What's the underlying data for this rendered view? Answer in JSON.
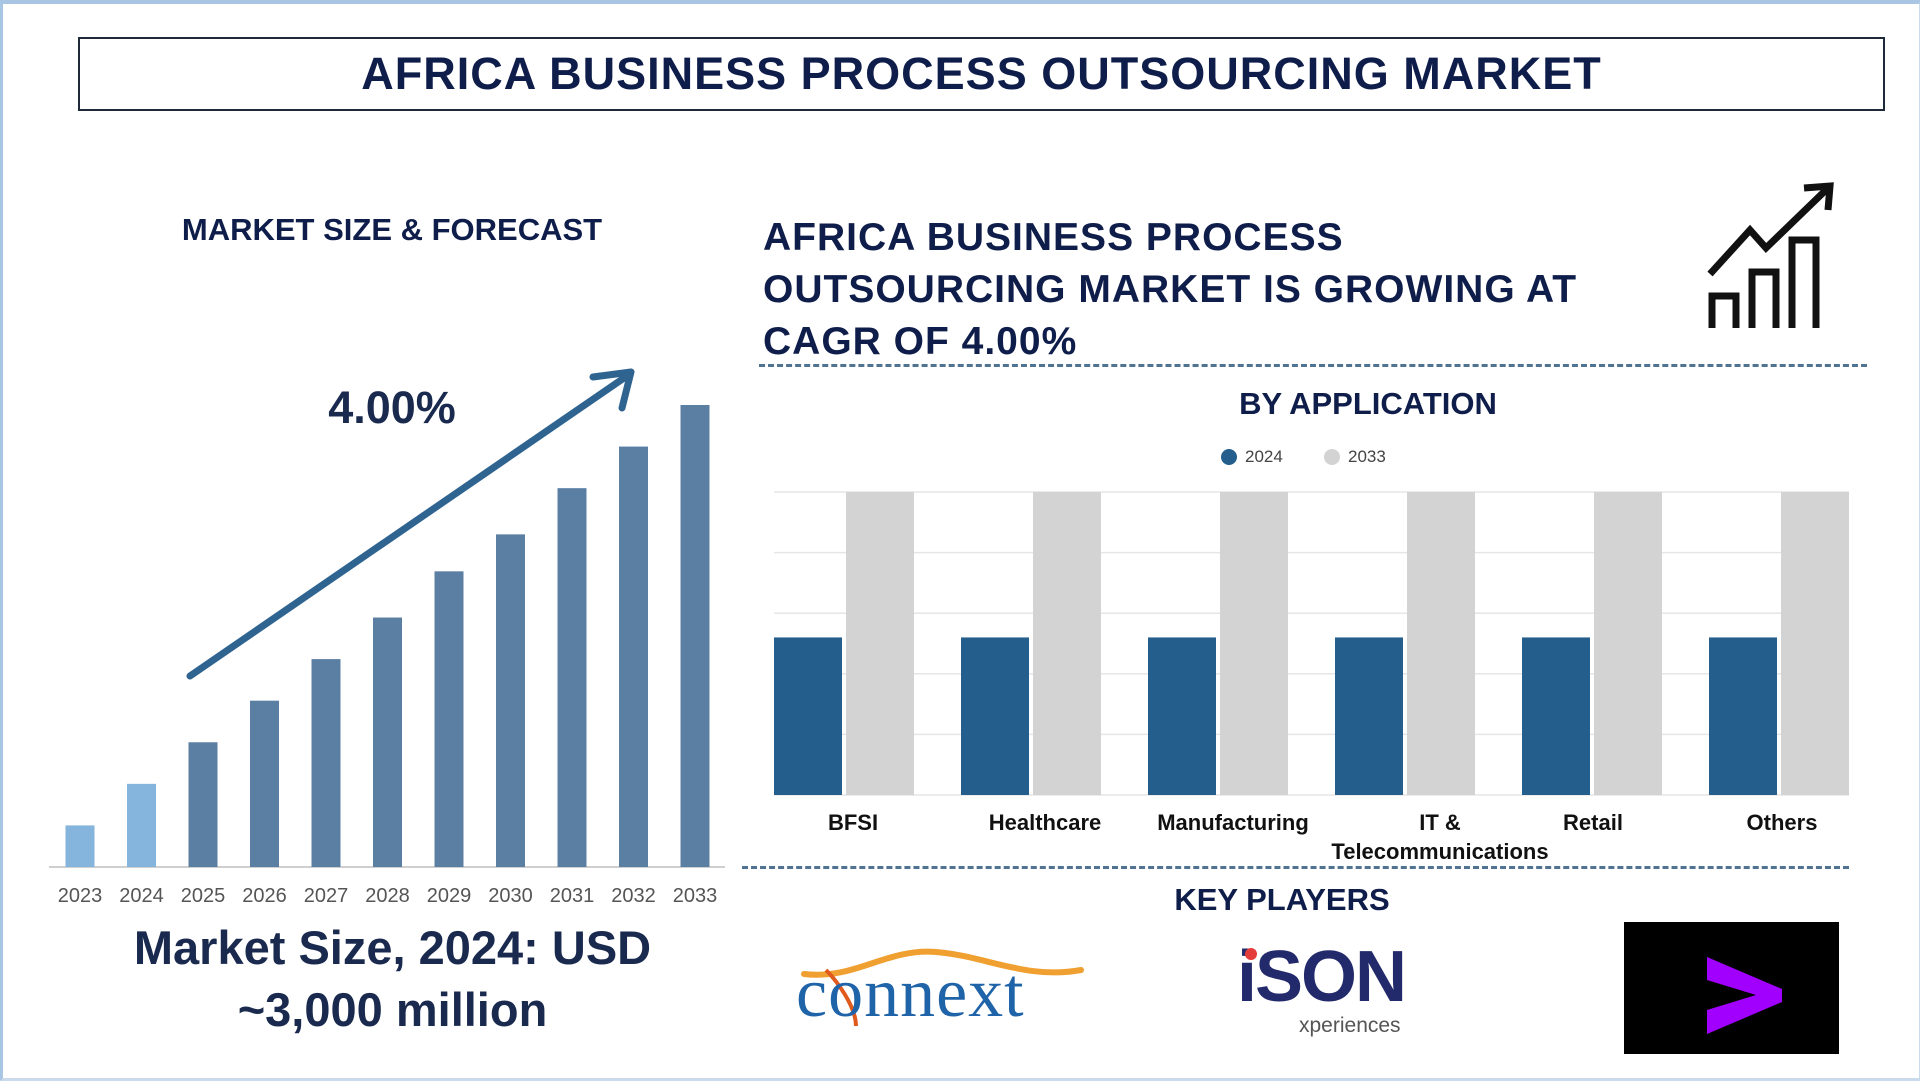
{
  "header": {
    "title": "AFRICA BUSINESS PROCESS OUTSOURCING MARKET"
  },
  "left_panel": {
    "section_title": "MARKET SIZE & FORECAST",
    "cagr_label": "4.00%",
    "market_size_line1": "Market Size, 2024: USD",
    "market_size_line2": "~3,000 million"
  },
  "right_panel": {
    "headline_lines": [
      "AFRICA BUSINESS PROCESS",
      "OUTSOURCING MARKET IS GROWING AT",
      "CAGR OF 4.00%"
    ],
    "growth_icon": "bar-chart-trend-up-icon",
    "application_title": "BY APPLICATION",
    "key_players_title": "KEY PLAYERS",
    "key_players": [
      {
        "name": "connext",
        "logo": "connext-logo"
      },
      {
        "name": "iSON",
        "sub": "xperiences",
        "logo": "ison-experiences-logo"
      },
      {
        "name": "Accenture",
        "logo": "accenture-chevron-logo",
        "color": "#a100ff"
      }
    ]
  },
  "chart_data": [
    {
      "type": "bar",
      "title": "MARKET SIZE & FORECAST",
      "categories": [
        "2023",
        "2024",
        "2025",
        "2026",
        "2027",
        "2028",
        "2029",
        "2030",
        "2031",
        "2032",
        "2033"
      ],
      "values": [
        9,
        18,
        27,
        36,
        45,
        54,
        64,
        72,
        82,
        91,
        100
      ],
      "value_note_units": "relative index (no axis printed)",
      "colors": {
        "historical": "#85b4dd",
        "forecast": "#5b7fa3"
      },
      "annotation": "4.00%",
      "grid": false,
      "xlabel": "",
      "ylabel": ""
    },
    {
      "type": "bar",
      "title": "BY APPLICATION",
      "categories": [
        "BFSI",
        "Healthcare",
        "Manufacturing",
        "IT & Telecommunications",
        "Retail",
        "Others"
      ],
      "category_lines": [
        [
          "BFSI"
        ],
        [
          "Healthcare"
        ],
        [
          "Manufacturing"
        ],
        [
          "IT &",
          "Telecommunications"
        ],
        [
          "Retail"
        ],
        [
          "Others"
        ]
      ],
      "series": [
        {
          "name": "2024",
          "values": [
            2.6,
            2.6,
            2.6,
            2.6,
            2.6,
            2.6
          ],
          "color": "#245e8c"
        },
        {
          "name": "2033",
          "values": [
            5,
            5,
            5,
            5,
            5,
            5
          ],
          "color": "#d3d3d3"
        }
      ],
      "ylim": [
        0,
        5
      ],
      "grid": true,
      "legend": "top-center",
      "xlabel": "",
      "ylabel": ""
    }
  ]
}
